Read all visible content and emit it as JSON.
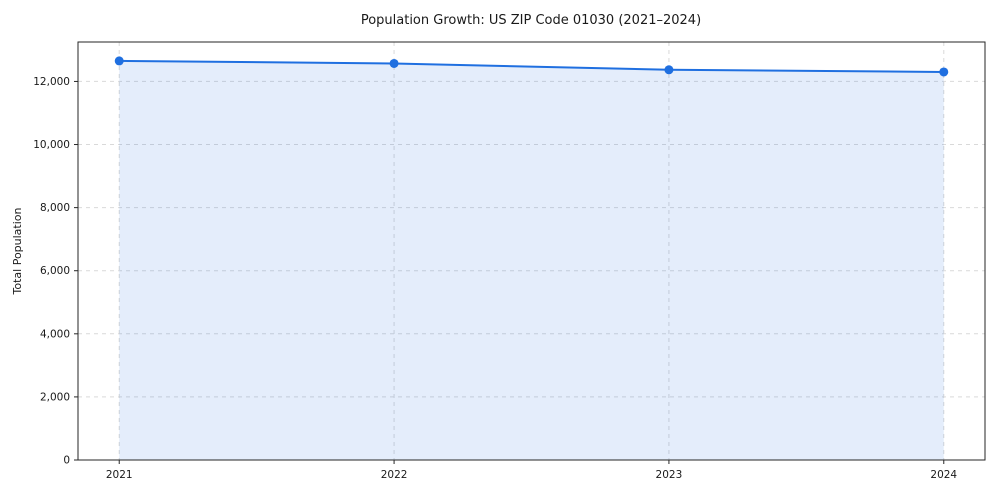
{
  "chart_data": {
    "type": "line",
    "title": "Population Growth: US ZIP Code 01030 (2021–2024)",
    "xlabel": "",
    "ylabel": "Total Population",
    "categories": [
      2021,
      2022,
      2023,
      2024
    ],
    "series": [
      {
        "name": "Total Population",
        "values": [
          12650,
          12570,
          12370,
          12300
        ]
      }
    ],
    "xtick_labels": [
      "2021",
      "2022",
      "2023",
      "2024"
    ],
    "yticks": [
      0,
      2000,
      4000,
      6000,
      8000,
      10000,
      12000
    ],
    "ytick_labels": [
      "0",
      "2,000",
      "4,000",
      "6,000",
      "8,000",
      "10,000",
      "12,000"
    ],
    "xlim": [
      2020.85,
      2024.15
    ],
    "ylim": [
      0,
      13250
    ],
    "grid": true,
    "grid_style": "dashed",
    "legend": false,
    "area_fill": true,
    "colors": {
      "line": "#1f6fe0",
      "marker": "#1f6fe0",
      "area": "rgba(31, 111, 224, 0.12)",
      "grid": "#d9d9d9",
      "axis": "#262626",
      "text": "#1a1a1a",
      "background": "#ffffff"
    }
  }
}
